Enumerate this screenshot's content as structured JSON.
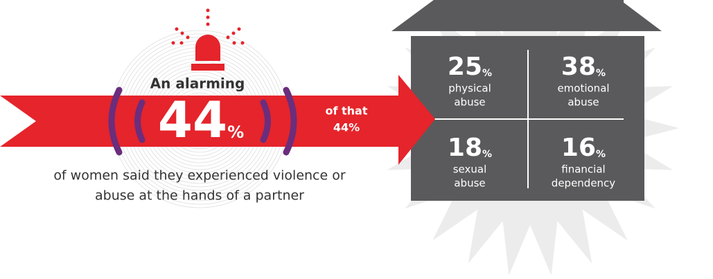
{
  "headline": {
    "intro": "An alarming",
    "number": "44",
    "unit": "%",
    "caption_line1": "of women said they experienced violence or",
    "caption_line2": "abuse at the hands of a partner"
  },
  "callout": {
    "line1": "of that",
    "line2": "44%"
  },
  "house": {
    "cells": [
      {
        "number": "25",
        "unit": "%",
        "label_line1": "physical",
        "label_line2": "abuse"
      },
      {
        "number": "38",
        "unit": "%",
        "label_line1": "emotional",
        "label_line2": "abuse"
      },
      {
        "number": "18",
        "unit": "%",
        "label_line1": "sexual",
        "label_line2": "abuse"
      },
      {
        "number": "16",
        "unit": "%",
        "label_line1": "financial",
        "label_line2": "dependency"
      }
    ]
  }
}
